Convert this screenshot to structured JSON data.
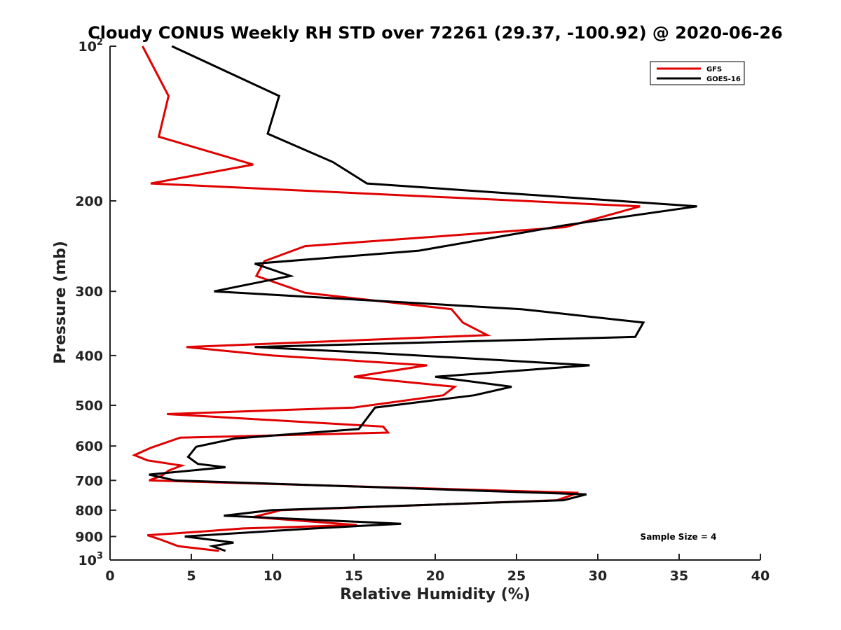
{
  "chart_data": {
    "type": "line",
    "title": "Cloudy CONUS Weekly RH STD over 72261 (29.37, -100.92) @ 2020-06-26",
    "xlabel": "Relative Humidity (%)",
    "ylabel": "Pressure (mb)",
    "xlim": [
      0,
      40
    ],
    "ylim": [
      100,
      1000
    ],
    "y_scale": "log",
    "y_reversed": true,
    "x_ticks": [
      0,
      5,
      10,
      15,
      20,
      25,
      30,
      35,
      40
    ],
    "y_ticks": [
      {
        "value": 100,
        "label": "10",
        "exp": "2"
      },
      {
        "value": 200,
        "label": "200"
      },
      {
        "value": 300,
        "label": "300"
      },
      {
        "value": 400,
        "label": "400"
      },
      {
        "value": 500,
        "label": "500"
      },
      {
        "value": 600,
        "label": "600"
      },
      {
        "value": 700,
        "label": "700"
      },
      {
        "value": 800,
        "label": "800"
      },
      {
        "value": 900,
        "label": "900"
      },
      {
        "value": 1000,
        "label": "10",
        "exp": "3"
      }
    ],
    "grid": false,
    "legend_position": "top-right",
    "annotation": "Sample Size = 4",
    "series": [
      {
        "name": "GFS",
        "color": "#e00000",
        "points": [
          [
            2.0,
            100
          ],
          [
            3.6,
            125
          ],
          [
            3.0,
            150
          ],
          [
            8.8,
            170
          ],
          [
            2.5,
            185
          ],
          [
            32.6,
            205
          ],
          [
            28.0,
            225
          ],
          [
            12.0,
            245
          ],
          [
            9.5,
            262
          ],
          [
            9.0,
            280
          ],
          [
            12.0,
            302
          ],
          [
            21.0,
            325
          ],
          [
            21.7,
            345
          ],
          [
            23.2,
            365
          ],
          [
            4.7,
            385
          ],
          [
            10.0,
            400
          ],
          [
            19.5,
            418
          ],
          [
            15.0,
            440
          ],
          [
            21.2,
            460
          ],
          [
            20.5,
            478
          ],
          [
            15.0,
            505
          ],
          [
            3.5,
            520
          ],
          [
            16.8,
            550
          ],
          [
            17.1,
            565
          ],
          [
            4.3,
            578
          ],
          [
            2.5,
            605
          ],
          [
            1.5,
            625
          ],
          [
            2.3,
            640
          ],
          [
            4.4,
            655
          ],
          [
            3.6,
            670
          ],
          [
            3.2,
            685
          ],
          [
            2.4,
            700
          ],
          [
            28.8,
            740
          ],
          [
            27.5,
            765
          ],
          [
            10.5,
            800
          ],
          [
            8.8,
            825
          ],
          [
            15.2,
            855
          ],
          [
            8.2,
            868
          ],
          [
            5.7,
            880
          ],
          [
            2.3,
            895
          ],
          [
            3.0,
            910
          ],
          [
            4.2,
            940
          ],
          [
            6.7,
            960
          ]
        ]
      },
      {
        "name": "GOES-16",
        "color": "#000000",
        "points": [
          [
            3.8,
            100
          ],
          [
            10.4,
            125
          ],
          [
            9.7,
            148
          ],
          [
            13.7,
            168
          ],
          [
            15.8,
            185
          ],
          [
            36.1,
            205
          ],
          [
            28.0,
            223
          ],
          [
            19.0,
            250
          ],
          [
            8.9,
            265
          ],
          [
            11.1,
            280
          ],
          [
            6.4,
            300
          ],
          [
            25.3,
            325
          ],
          [
            32.8,
            345
          ],
          [
            32.3,
            368
          ],
          [
            8.9,
            385
          ],
          [
            16.6,
            396
          ],
          [
            29.5,
            418
          ],
          [
            20.0,
            440
          ],
          [
            24.7,
            460
          ],
          [
            22.4,
            478
          ],
          [
            16.3,
            505
          ],
          [
            15.3,
            556
          ],
          [
            7.7,
            580
          ],
          [
            5.3,
            602
          ],
          [
            4.8,
            630
          ],
          [
            5.4,
            650
          ],
          [
            7.1,
            660
          ],
          [
            2.4,
            682
          ],
          [
            4.0,
            700
          ],
          [
            29.3,
            745
          ],
          [
            27.9,
            765
          ],
          [
            9.9,
            800
          ],
          [
            7.0,
            820
          ],
          [
            17.9,
            850
          ],
          [
            12.0,
            870
          ],
          [
            4.6,
            900
          ],
          [
            7.6,
            925
          ],
          [
            6.3,
            940
          ],
          [
            7.1,
            960
          ]
        ]
      }
    ]
  }
}
